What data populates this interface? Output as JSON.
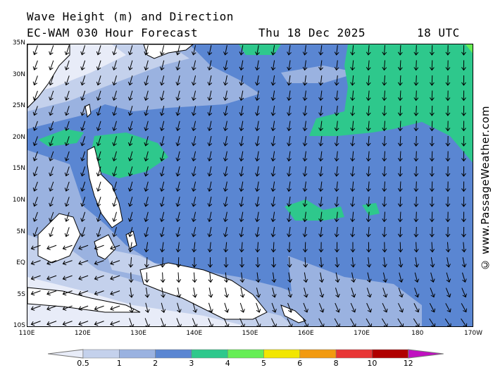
{
  "title": {
    "line1": "Wave Height (m) and Direction",
    "line2": "EC-WAM 030 Hour Forecast",
    "date": "Thu 18 Dec 2025",
    "hour": "18 UTC"
  },
  "credit": "© www.PassageWeather.com",
  "axes": {
    "y_labels": [
      "35N",
      "30N",
      "25N",
      "20N",
      "15N",
      "10N",
      "5N",
      "EQ",
      "5S",
      "10S"
    ],
    "x_labels": [
      "110E",
      "120E",
      "130E",
      "140E",
      "150E",
      "160E",
      "170E",
      "180",
      "170W"
    ]
  },
  "legend": {
    "labels": [
      "0.5",
      "1",
      "2",
      "3",
      "4",
      "5",
      "6",
      "8",
      "10",
      "12"
    ],
    "colors": [
      "#e8ecf8",
      "#c4d1ec",
      "#9ab2e0",
      "#5a86d2",
      "#2ec88c",
      "#66ee55",
      "#f2e600",
      "#f29a10",
      "#e83535",
      "#b00000",
      "#c010c0"
    ]
  },
  "map_colors": {
    "land": "#ffffff",
    "wave_0_5": "#e8ecf8",
    "wave_1": "#c4d1ec",
    "wave_2": "#9ab2e0",
    "wave_3": "#5a86d2",
    "wave_4": "#2ec88c",
    "wave_5": "#66ee55"
  }
}
